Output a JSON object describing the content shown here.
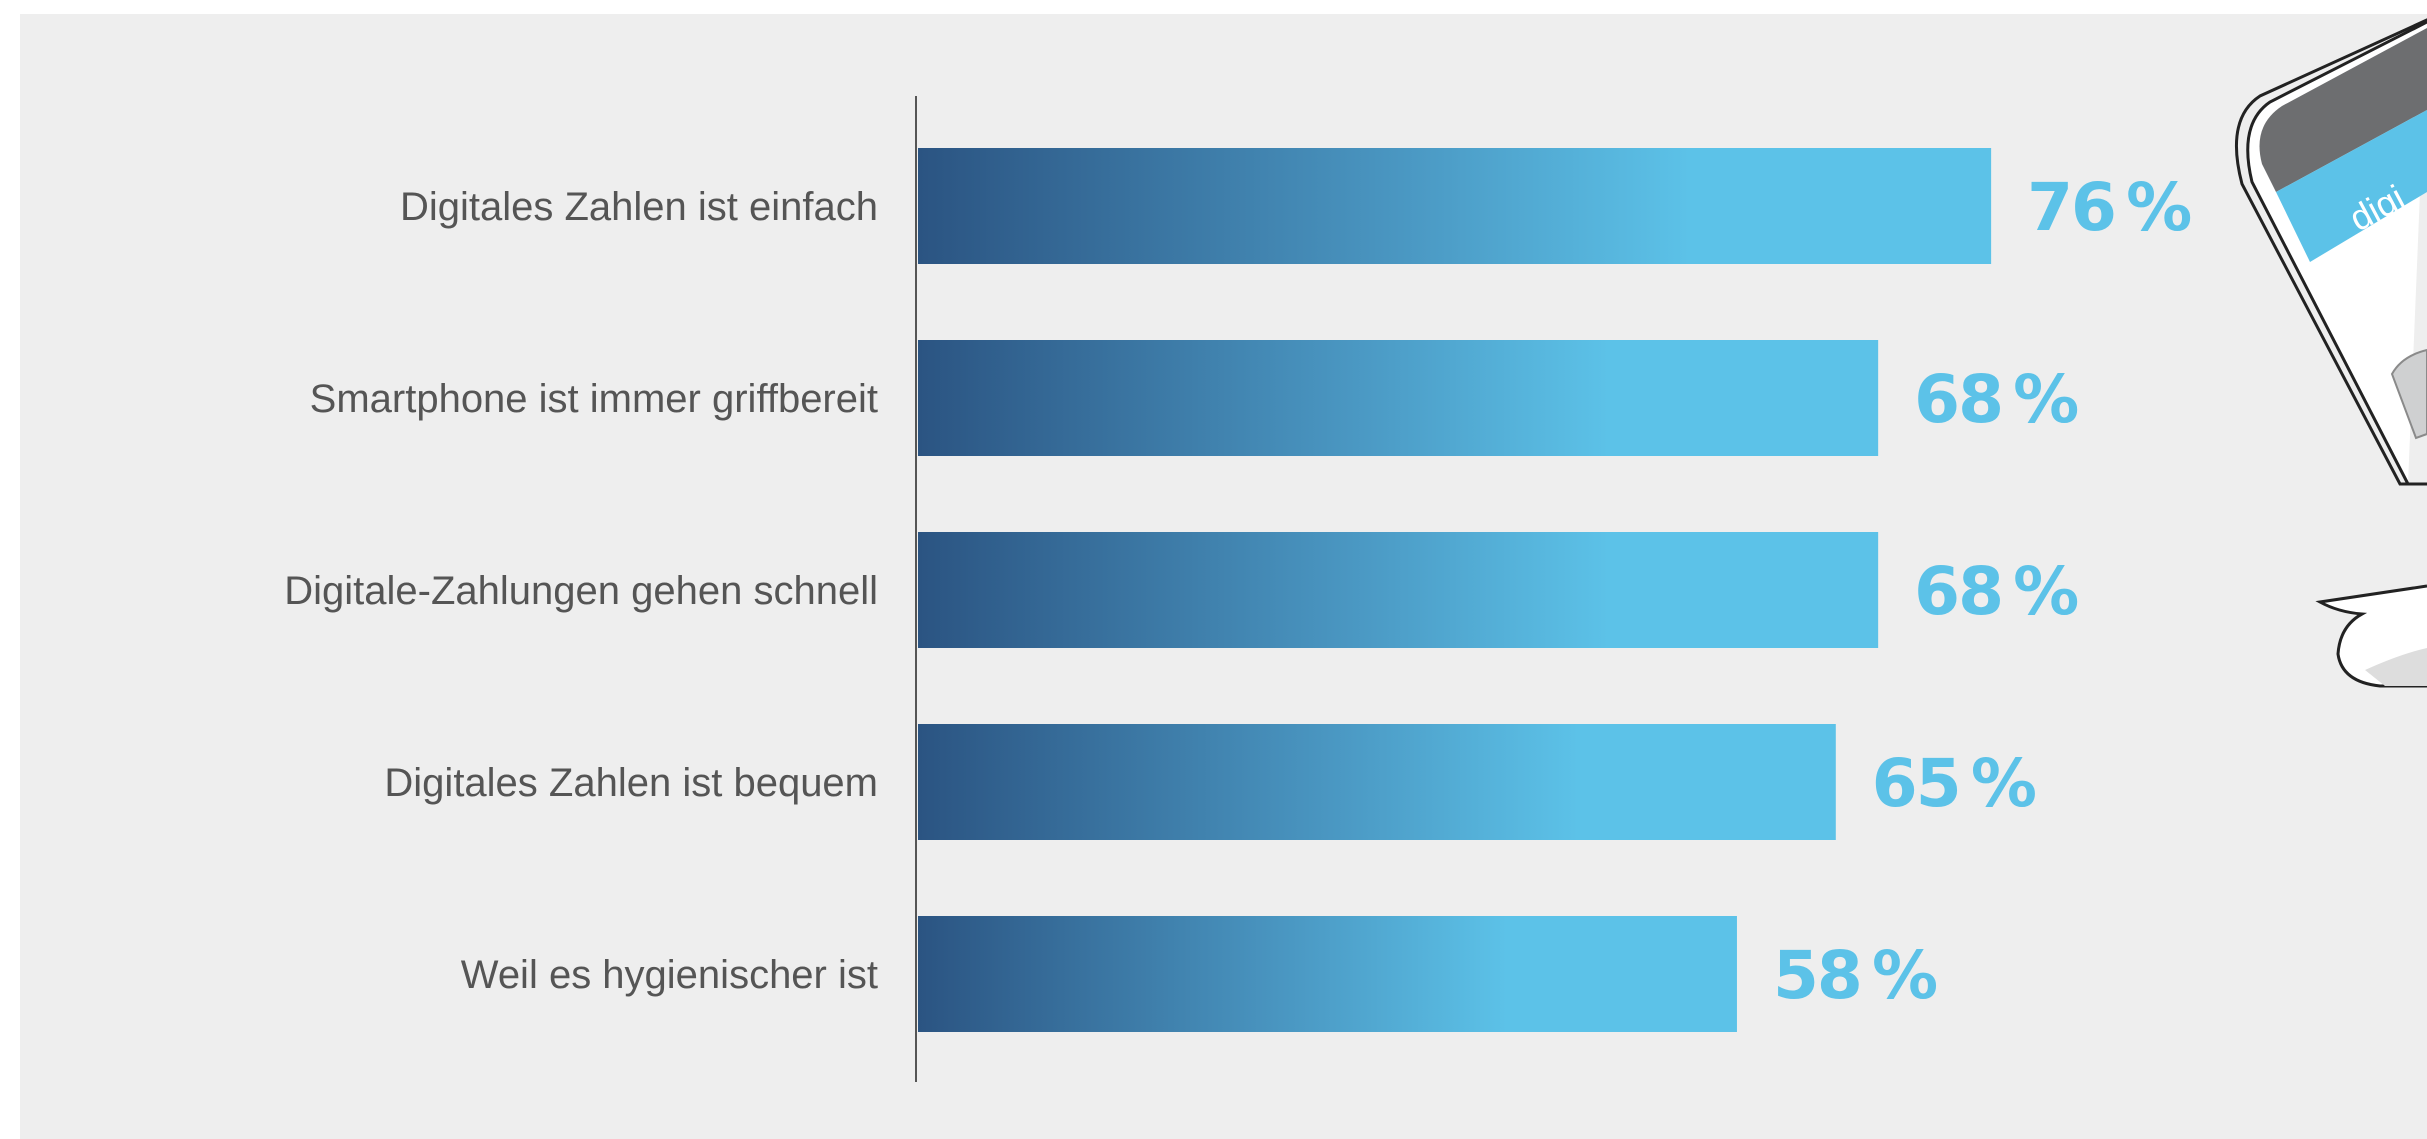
{
  "chart_data": {
    "type": "bar",
    "orientation": "horizontal",
    "categories": [
      "Digitales Zahlen ist einfach",
      "Smartphone ist immer griffbereit",
      "Digitale-Zahlungen gehen schnell",
      "Digitales Zahlen ist bequem",
      "Weil es hygienischer ist"
    ],
    "values": [
      76,
      68,
      68,
      65,
      58
    ],
    "value_labels": [
      "76 %",
      "68 %",
      "68 %",
      "65 %",
      "58 %"
    ],
    "unit": "%",
    "xlim": [
      0,
      100
    ],
    "grid": false,
    "legend": "none",
    "title": "",
    "xlabel": "",
    "ylabel": ""
  },
  "colors": {
    "panel_background": "#eeeeee",
    "bar_gradient_start": "#2b5482",
    "bar_gradient_mid": "#4a97c2",
    "bar_gradient_end": "#5cc2e8",
    "value_label": "#5cc2e8",
    "category_label": "#555555",
    "axis_line": "#555555",
    "phone_screen_band": "#5cc2e8",
    "phone_frame": "#6d6e70"
  },
  "decoration": {
    "phone_illustration": "smartphone-icon",
    "phone_screen_text": "digi"
  }
}
